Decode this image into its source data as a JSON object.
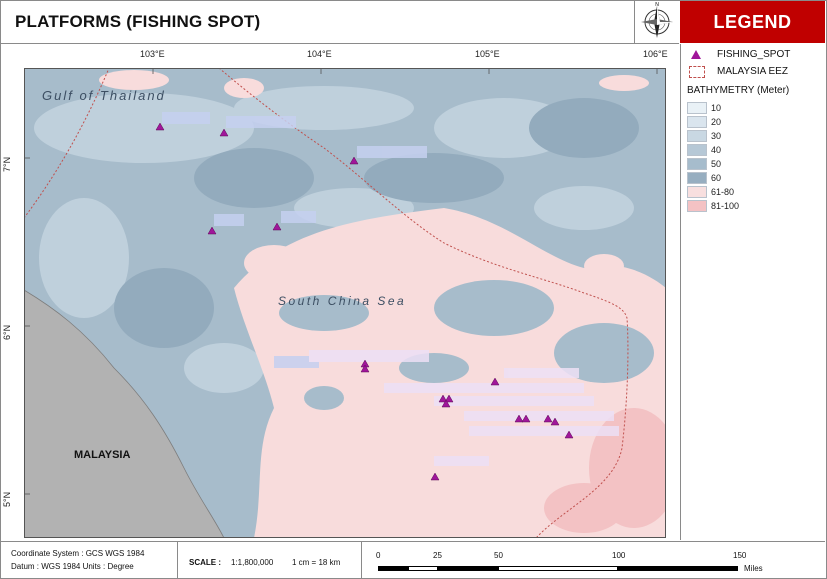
{
  "title": "PLATFORMS (FISHING SPOT)",
  "legend": {
    "heading": "LEGEND",
    "fishing_spot": "FISHING_SPOT",
    "eez": "MALAYSIA EEZ",
    "bathymetry_title": "BATHYMETRY (Meter)",
    "bathymetry_classes": [
      {
        "label": "10",
        "color": "#e9f1f6"
      },
      {
        "label": "20",
        "color": "#dae5ee"
      },
      {
        "label": "30",
        "color": "#c9d8e3"
      },
      {
        "label": "40",
        "color": "#b6c8d6"
      },
      {
        "label": "50",
        "color": "#a6bccc"
      },
      {
        "label": "60",
        "color": "#97aec0"
      },
      {
        "label": "61-80",
        "color": "#f8dfdf"
      },
      {
        "label": "81-100",
        "color": "#f4c2c4"
      }
    ]
  },
  "map": {
    "lon_labels": [
      "103°E",
      "104°E",
      "105°E",
      "106°E"
    ],
    "lat_labels": [
      "7°N",
      "6°N",
      "5°N"
    ],
    "place_labels": {
      "gulf": "Gulf of Thailand",
      "sea": "South China Sea",
      "country": "MALAYSIA"
    },
    "colors": {
      "shallow": "#a4b9c9",
      "deep": "#f8dada",
      "land": "#b2b2b2",
      "eez": "#c0504d",
      "marker": "#a0169a"
    }
  },
  "footer": {
    "coordinate_system": "Coordinate System : GCS WGS 1984",
    "datum": "Datum : WGS 1984  Units : Degree",
    "scale_label": "SCALE :",
    "scale_ratio": "1:1,800,000",
    "scale_equiv": "1 cm = 18 km",
    "scalebar_ticks": [
      "0",
      "25",
      "50",
      "100",
      "150"
    ],
    "scalebar_unit": "Miles"
  }
}
